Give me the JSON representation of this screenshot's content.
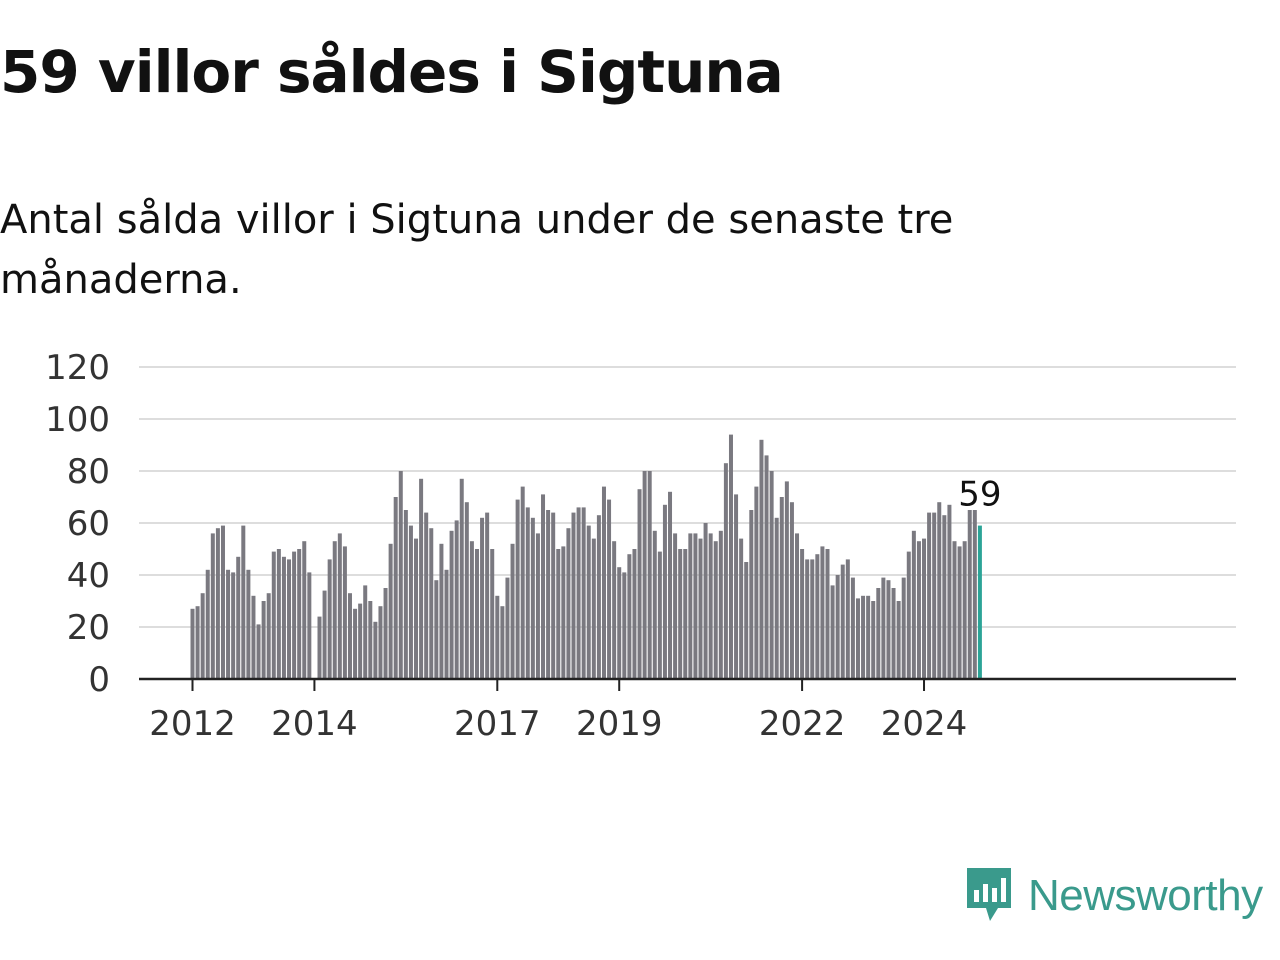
{
  "title": "59 villor såldes i Sigtuna",
  "subtitle": "Antal sålda villor i Sigtuna under de senaste tre månaderna.",
  "brand": {
    "name": "Newsworthy",
    "logo_icon": "newsworthy-logo-icon"
  },
  "colors": {
    "bar": "#7a7980",
    "highlight": "#2ba497",
    "grid": "#dddddd",
    "axis": "#222222",
    "brand": "#3a9a8c"
  },
  "chart_data": {
    "type": "bar",
    "title": "59 villor såldes i Sigtuna",
    "xlabel": "",
    "ylabel": "",
    "ylim": [
      0,
      120
    ],
    "y_ticks": [
      0,
      20,
      40,
      60,
      80,
      100,
      120
    ],
    "x_tick_labels": [
      "2012",
      "2014",
      "2017",
      "2019",
      "2022",
      "2024"
    ],
    "grid": true,
    "highlight_label": "59",
    "categories": [
      "2012-01",
      "2012-02",
      "2012-03",
      "2012-04",
      "2012-05",
      "2012-06",
      "2012-07",
      "2012-08",
      "2012-09",
      "2012-10",
      "2012-11",
      "2012-12",
      "2013-01",
      "2013-02",
      "2013-03",
      "2013-04",
      "2013-05",
      "2013-06",
      "2013-07",
      "2013-08",
      "2013-09",
      "2013-10",
      "2013-11",
      "2013-12",
      "2014-01",
      "2014-02",
      "2014-03",
      "2014-04",
      "2014-05",
      "2014-06",
      "2014-07",
      "2014-08",
      "2014-09",
      "2014-10",
      "2014-11",
      "2014-12",
      "2015-01",
      "2015-02",
      "2015-03",
      "2015-04",
      "2015-05",
      "2015-06",
      "2015-07",
      "2015-08",
      "2015-09",
      "2015-10",
      "2015-11",
      "2015-12",
      "2016-01",
      "2016-02",
      "2016-03",
      "2016-04",
      "2016-05",
      "2016-06",
      "2016-07",
      "2016-08",
      "2016-09",
      "2016-10",
      "2016-11",
      "2016-12",
      "2017-01",
      "2017-02",
      "2017-03",
      "2017-04",
      "2017-05",
      "2017-06",
      "2017-07",
      "2017-08",
      "2017-09",
      "2017-10",
      "2017-11",
      "2017-12",
      "2018-01",
      "2018-02",
      "2018-03",
      "2018-04",
      "2018-05",
      "2018-06",
      "2018-07",
      "2018-08",
      "2018-09",
      "2018-10",
      "2018-11",
      "2018-12",
      "2019-01",
      "2019-02",
      "2019-03",
      "2019-04",
      "2019-05",
      "2019-06",
      "2019-07",
      "2019-08",
      "2019-09",
      "2019-10",
      "2019-11",
      "2019-12",
      "2020-01",
      "2020-02",
      "2020-03",
      "2020-04",
      "2020-05",
      "2020-06",
      "2020-07",
      "2020-08",
      "2020-09",
      "2020-10",
      "2020-11",
      "2020-12",
      "2021-01",
      "2021-02",
      "2021-03",
      "2021-04",
      "2021-05",
      "2021-06",
      "2021-07",
      "2021-08",
      "2021-09",
      "2021-10",
      "2021-11",
      "2021-12",
      "2022-01",
      "2022-02",
      "2022-03",
      "2022-04",
      "2022-05",
      "2022-06",
      "2022-07",
      "2022-08",
      "2022-09",
      "2022-10",
      "2022-11",
      "2022-12",
      "2023-01",
      "2023-02",
      "2023-03",
      "2023-04",
      "2023-05",
      "2023-06",
      "2023-07",
      "2023-08",
      "2023-09",
      "2023-10",
      "2023-11",
      "2023-12",
      "2024-01",
      "2024-02",
      "2024-03",
      "2024-04",
      "2024-05",
      "2024-06",
      "2024-07",
      "2024-08",
      "2024-09",
      "2024-10",
      "2024-11",
      "2024-12"
    ],
    "values": [
      27,
      28,
      33,
      42,
      56,
      58,
      59,
      42,
      41,
      47,
      59,
      42,
      32,
      21,
      30,
      33,
      49,
      50,
      47,
      46,
      49,
      50,
      53,
      41,
      0,
      24,
      34,
      46,
      53,
      56,
      51,
      33,
      27,
      29,
      36,
      30,
      22,
      28,
      35,
      52,
      70,
      80,
      65,
      59,
      54,
      77,
      64,
      58,
      38,
      52,
      42,
      57,
      61,
      77,
      68,
      53,
      50,
      62,
      64,
      50,
      32,
      28,
      39,
      52,
      69,
      74,
      66,
      62,
      56,
      71,
      65,
      64,
      50,
      51,
      58,
      64,
      66,
      66,
      59,
      54,
      63,
      74,
      69,
      53,
      43,
      41,
      48,
      50,
      73,
      80,
      80,
      57,
      49,
      67,
      72,
      56,
      50,
      50,
      56,
      56,
      54,
      60,
      56,
      53,
      57,
      83,
      94,
      71,
      54,
      45,
      65,
      74,
      92,
      86,
      80,
      62,
      70,
      76,
      68,
      56,
      50,
      46,
      46,
      48,
      51,
      50,
      36,
      40,
      44,
      46,
      39,
      31,
      32,
      32,
      30,
      35,
      39,
      38,
      35,
      30,
      39,
      49,
      57,
      53,
      54,
      64,
      64,
      68,
      63,
      67,
      53,
      51,
      53,
      65,
      65,
      59
    ],
    "highlight_last": 1
  }
}
